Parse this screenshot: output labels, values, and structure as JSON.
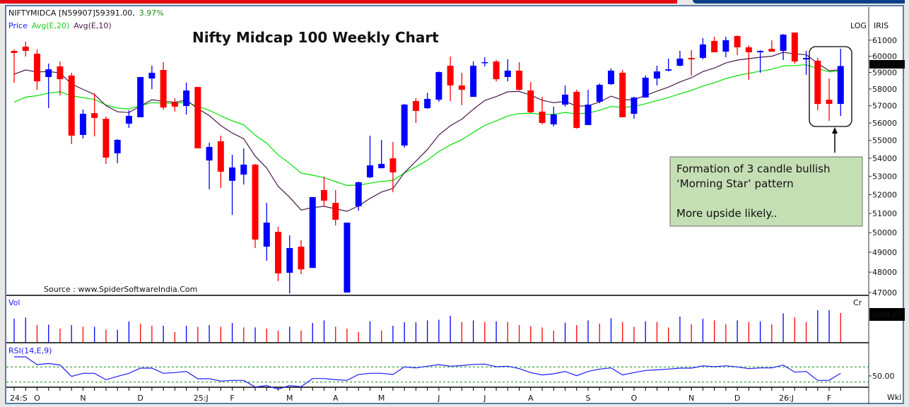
{
  "header": {
    "symbol_line": "NIFTYMIDCA [N59907]59391.00,",
    "change": "3.97%",
    "legend": {
      "price": "Price",
      "avg20": "Avg(E,20)",
      "avg10": "Avg(E,10)"
    }
  },
  "chart_title": "Nifty Midcap 100 Weekly Chart",
  "source": "Source : www.SpiderSoftwareIndia.Com",
  "scale_labels": {
    "log": "LOG",
    "iris": "IRIS",
    "vol_unit": "Cr",
    "period": "Wkl"
  },
  "annotation": {
    "line1": "Formation of 3 candle bullish",
    "line2": "‘Morning Star’ pattern",
    "line3": "More upside likely.."
  },
  "colors": {
    "up": "#0000ff",
    "down": "#ff0000",
    "ema20": "#00e000",
    "ema10": "#4b1a4b",
    "rsi": "#1a1aff",
    "rsi_bands": "#2a9a2a",
    "annotation_fill": "#c5dfb4"
  },
  "chart_data": [
    {
      "type": "candlestick",
      "title": "Nifty Midcap 100 Weekly Chart",
      "scale": "log",
      "ylim": [
        47000,
        61000
      ],
      "yticks": [
        "61000",
        "60000",
        "59000",
        "58000",
        "57000",
        "56000",
        "55000",
        "54000",
        "53000",
        "52000",
        "51000",
        "50000",
        "49000",
        "48000",
        "47000"
      ],
      "last_price_label": "59391.0",
      "xtick_labels": [
        {
          "i": 0,
          "label": "24:S"
        },
        {
          "i": 2,
          "label": "O"
        },
        {
          "i": 6,
          "label": "N"
        },
        {
          "i": 11,
          "label": "D"
        },
        {
          "i": 16,
          "label": "25:J"
        },
        {
          "i": 19,
          "label": "F"
        },
        {
          "i": 24,
          "label": "M"
        },
        {
          "i": 28,
          "label": "A"
        },
        {
          "i": 32,
          "label": "M"
        },
        {
          "i": 37,
          "label": "J"
        },
        {
          "i": 41,
          "label": "J"
        },
        {
          "i": 45,
          "label": "A"
        },
        {
          "i": 50,
          "label": "S"
        },
        {
          "i": 54,
          "label": "O"
        },
        {
          "i": 59,
          "label": "N"
        },
        {
          "i": 63,
          "label": "D"
        },
        {
          "i": 67,
          "label": "26:J"
        },
        {
          "i": 71,
          "label": "F"
        }
      ],
      "ohlc": [
        [
          60330,
          60420,
          58380,
          60200
        ],
        [
          60590,
          60900,
          59980,
          60330
        ],
        [
          60150,
          60420,
          57950,
          58460
        ],
        [
          58720,
          59540,
          56860,
          59190
        ],
        [
          59370,
          59670,
          57620,
          58590
        ],
        [
          58810,
          58980,
          54790,
          55270
        ],
        [
          55310,
          56780,
          55110,
          56530
        ],
        [
          56570,
          57740,
          55230,
          56290
        ],
        [
          56240,
          56370,
          53680,
          54030
        ],
        [
          54270,
          55070,
          53720,
          55030
        ],
        [
          55960,
          56740,
          55710,
          56410
        ],
        [
          56330,
          58720,
          56330,
          58720
        ],
        [
          58630,
          59410,
          57990,
          58980
        ],
        [
          59150,
          59630,
          56780,
          56900
        ],
        [
          57200,
          57450,
          56660,
          56950
        ],
        [
          56990,
          58380,
          56490,
          57910
        ],
        [
          58120,
          58120,
          54550,
          54550
        ],
        [
          53870,
          54870,
          52290,
          54630
        ],
        [
          54950,
          55270,
          52360,
          53250
        ],
        [
          52750,
          54190,
          50930,
          53480
        ],
        [
          53090,
          54550,
          52550,
          53640
        ],
        [
          53640,
          53680,
          49210,
          49640
        ],
        [
          49280,
          51560,
          48570,
          50520
        ],
        [
          50040,
          50300,
          47550,
          47940
        ],
        [
          47970,
          49860,
          46950,
          49210
        ],
        [
          49280,
          49610,
          47900,
          48140
        ],
        [
          48210,
          51870,
          48210,
          51870
        ],
        [
          52250,
          52980,
          51380,
          51680
        ],
        [
          51560,
          52250,
          50370,
          50670
        ],
        [
          47000,
          50520,
          47000,
          50520
        ],
        [
          51380,
          52710,
          51150,
          52670
        ],
        [
          52940,
          55270,
          52900,
          53600
        ],
        [
          53440,
          55030,
          53440,
          53680
        ],
        [
          53990,
          54910,
          52130,
          53210
        ],
        [
          54710,
          57110,
          54590,
          57070
        ],
        [
          57280,
          57450,
          56000,
          56700
        ],
        [
          56860,
          57780,
          56820,
          57410
        ],
        [
          57360,
          59060,
          57240,
          59020
        ],
        [
          59410,
          59980,
          57280,
          58210
        ],
        [
          58210,
          58980,
          57030,
          57950
        ],
        [
          57530,
          59670,
          57530,
          59410
        ],
        [
          59580,
          59930,
          59370,
          59630
        ],
        [
          59670,
          59760,
          58460,
          58590
        ],
        [
          58720,
          59800,
          58460,
          59110
        ],
        [
          59110,
          59630,
          57910,
          57950
        ],
        [
          57910,
          58420,
          56570,
          56620
        ],
        [
          56660,
          57530,
          55920,
          56000
        ],
        [
          55920,
          56950,
          55800,
          56490
        ],
        [
          57070,
          58210,
          56950,
          57660
        ],
        [
          57830,
          57950,
          55670,
          55710
        ],
        [
          55880,
          57950,
          55880,
          57070
        ],
        [
          57240,
          58330,
          57150,
          58250
        ],
        [
          58290,
          59240,
          58250,
          59110
        ],
        [
          58980,
          59150,
          56330,
          56330
        ],
        [
          56530,
          57530,
          56240,
          57490
        ],
        [
          57490,
          58810,
          57490,
          58680
        ],
        [
          58630,
          59410,
          58210,
          59060
        ],
        [
          59110,
          59850,
          59060,
          59190
        ],
        [
          59410,
          60330,
          59370,
          59850
        ],
        [
          59890,
          60370,
          58810,
          59800
        ],
        [
          59890,
          61130,
          59800,
          60730
        ],
        [
          60950,
          61210,
          60240,
          60240
        ],
        [
          60280,
          61210,
          59930,
          61000
        ],
        [
          61260,
          61300,
          60060,
          60550
        ],
        [
          60550,
          60680,
          58550,
          60240
        ],
        [
          60240,
          60370,
          58980,
          60330
        ],
        [
          60460,
          60990,
          60280,
          60280
        ],
        [
          60330,
          61390,
          59760,
          61350
        ],
        [
          61480,
          61480,
          59540,
          59670
        ],
        [
          59800,
          60330,
          58850,
          59890
        ],
        [
          59720,
          59890,
          56740,
          57110
        ],
        [
          57360,
          58630,
          56120,
          57110
        ],
        [
          57110,
          60460,
          56410,
          59391
        ]
      ],
      "series": [
        {
          "name": "Avg(E,20)",
          "kind": "ema",
          "period": 20
        },
        {
          "name": "Avg(E,10)",
          "kind": "ema",
          "period": 10
        }
      ],
      "highlight": {
        "from_index": 70,
        "to_index": 72,
        "note": "annotation"
      }
    },
    {
      "type": "bar",
      "title": "Vol",
      "unit": "Cr",
      "last_value_label": "3000.87",
      "values": [
        2410,
        2530,
        1750,
        1800,
        1390,
        1750,
        1580,
        1580,
        1270,
        1270,
        2140,
        1900,
        1680,
        1680,
        1020,
        1680,
        1580,
        1750,
        1580,
        1970,
        1510,
        1510,
        1390,
        1190,
        1580,
        1190,
        1970,
        2240,
        1580,
        1390,
        1020,
        2140,
        1190,
        1680,
        2040,
        2040,
        2240,
        2310,
        2720,
        2070,
        2240,
        2070,
        2140,
        2070,
        1750,
        1650,
        1510,
        1170,
        1990,
        1750,
        2240,
        1900,
        2460,
        2070,
        1580,
        2140,
        2070,
        1510,
        2630,
        1830,
        2410,
        2240,
        1830,
        2240,
        2070,
        2140,
        1830,
        2970,
        2560,
        2070,
        3290,
        3290,
        3000.87
      ],
      "direction": [
        "u",
        "u",
        "d",
        "u",
        "d",
        "u",
        "d",
        "u",
        "d",
        "u",
        "u",
        "d",
        "d",
        "u",
        "d",
        "u",
        "d",
        "u",
        "d",
        "u",
        "d",
        "u",
        "d",
        "d",
        "u",
        "d",
        "u",
        "u",
        "d",
        "d",
        "d",
        "u",
        "d",
        "u",
        "u",
        "u",
        "u",
        "u",
        "u",
        "d",
        "u",
        "d",
        "u",
        "d",
        "d",
        "d",
        "d",
        "d",
        "u",
        "d",
        "u",
        "d",
        "u",
        "d",
        "d",
        "u",
        "d",
        "d",
        "u",
        "d",
        "u",
        "d",
        "d",
        "u",
        "d",
        "u",
        "d",
        "u",
        "d",
        "d",
        "u",
        "u",
        "d"
      ]
    },
    {
      "type": "line",
      "title": "RSI(14,E,9)",
      "ylabel_tick": "50.00",
      "bands": [
        40,
        60
      ],
      "values": [
        73.4,
        73.4,
        63.1,
        64.6,
        62.5,
        47.5,
        51.6,
        51.6,
        43.1,
        47.5,
        51.6,
        58.4,
        58.4,
        51.6,
        52.5,
        54.0,
        44.4,
        44.4,
        41.3,
        42.2,
        42.2,
        33.5,
        35.4,
        30.7,
        35.4,
        33.8,
        44.7,
        44.7,
        43.1,
        42.2,
        50.0,
        51.6,
        51.6,
        50.0,
        60.0,
        58.7,
        60.9,
        63.1,
        60.9,
        61.8,
        63.4,
        63.7,
        60.3,
        60.9,
        57.8,
        52.5,
        49.4,
        50.9,
        54.0,
        48.4,
        54.0,
        57.2,
        58.7,
        49.4,
        52.5,
        55.3,
        56.2,
        57.2,
        58.4,
        58.4,
        61.5,
        60.3,
        61.5,
        60.0,
        57.8,
        58.7,
        58.7,
        62.5,
        53.1,
        54.0,
        42.2,
        42.2,
        51.6
      ]
    }
  ]
}
